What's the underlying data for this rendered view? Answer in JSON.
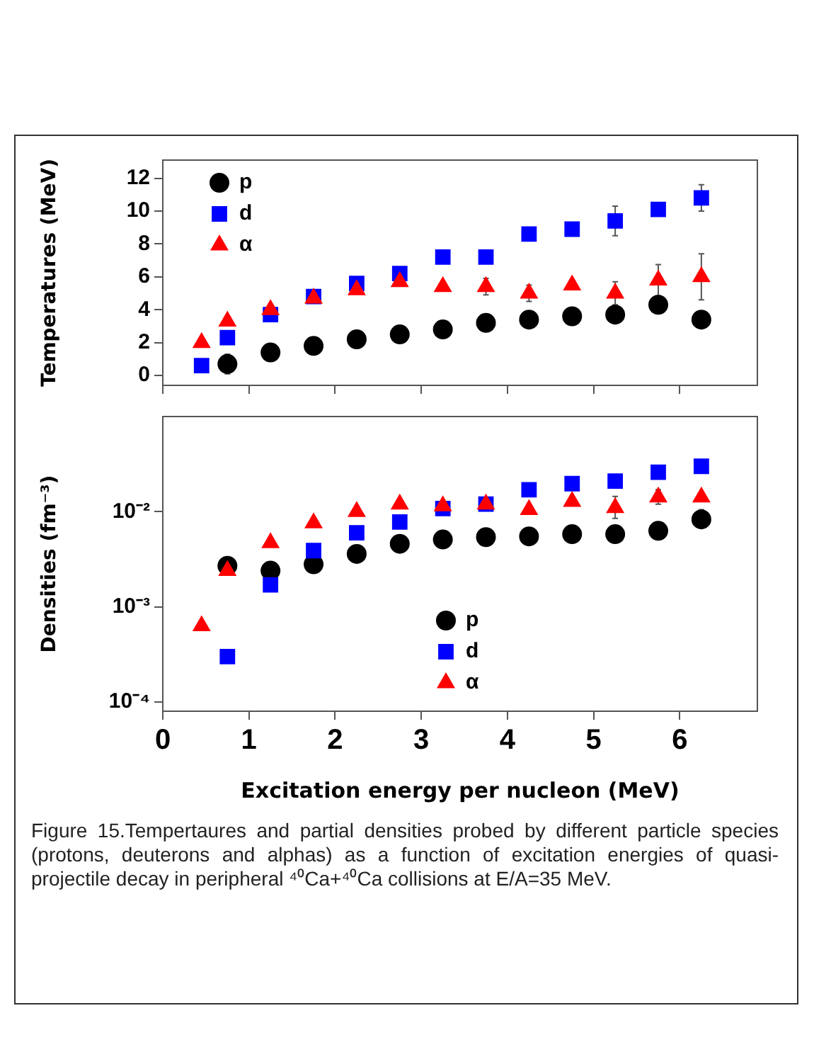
{
  "chart_data": [
    {
      "type": "scatter",
      "ylabel": "Temperatures (MeV)",
      "xlim": [
        0,
        6.9
      ],
      "xticks": [
        0,
        1,
        2,
        3,
        4,
        5,
        6
      ],
      "ylim": [
        -0.6,
        13.1
      ],
      "yticks": [
        0,
        2,
        4,
        6,
        8,
        10,
        12
      ],
      "tick_labels": "y",
      "legend": "top left",
      "grid": false,
      "series": [
        {
          "name": "p",
          "color": "#000000",
          "marker": "circle",
          "x": [
            0.75,
            1.25,
            1.75,
            2.25,
            2.75,
            3.25,
            3.75,
            4.25,
            4.75,
            5.25,
            5.75,
            6.25
          ],
          "values": [
            0.7,
            1.4,
            1.8,
            2.2,
            2.5,
            2.8,
            3.2,
            3.4,
            3.6,
            3.7,
            4.3,
            3.4
          ],
          "errors": [
            0.6,
            null,
            null,
            null,
            null,
            null,
            null,
            null,
            null,
            null,
            0.4,
            null
          ]
        },
        {
          "name": "d",
          "color": "#0000ff",
          "marker": "square",
          "x": [
            0.45,
            0.75,
            1.25,
            1.75,
            2.25,
            2.75,
            3.25,
            3.75,
            4.25,
            4.75,
            5.25,
            5.75,
            6.25
          ],
          "values": [
            0.6,
            2.3,
            3.7,
            4.8,
            5.6,
            6.2,
            7.2,
            7.2,
            8.6,
            8.9,
            9.4,
            10.1,
            10.8
          ],
          "errors": [
            null,
            null,
            null,
            null,
            null,
            null,
            null,
            null,
            null,
            null,
            0.9,
            null,
            0.8
          ]
        },
        {
          "name": "α",
          "color": "#ff0000",
          "marker": "triangle",
          "x": [
            0.45,
            0.75,
            1.25,
            1.75,
            2.25,
            2.75,
            3.25,
            3.75,
            4.25,
            4.75,
            5.25,
            5.75,
            6.25
          ],
          "values": [
            2.0,
            3.3,
            4.0,
            4.7,
            5.2,
            5.7,
            5.4,
            5.4,
            5.0,
            5.5,
            5.0,
            5.8,
            6.0
          ],
          "errors": [
            null,
            null,
            null,
            null,
            null,
            null,
            null,
            0.5,
            0.5,
            null,
            0.7,
            0.95,
            1.4
          ]
        }
      ]
    },
    {
      "type": "scatter",
      "xlabel": "Excitation energy per nucleon (MeV)",
      "ylabel": "Densities (fm⁻³)",
      "log": "y",
      "xlim": [
        0,
        6.9
      ],
      "xticks": [
        0,
        1,
        2,
        3,
        4,
        5,
        6
      ],
      "ylim": [
        8e-05,
        0.1
      ],
      "yticks": [
        {
          "value": 0.0001,
          "label": "10⁻⁴"
        },
        {
          "value": 0.001,
          "label": "10⁻³"
        },
        {
          "value": 0.01,
          "label": "10⁻²"
        }
      ],
      "legend": "bottom",
      "grid": false,
      "annotations": [
        "Figure 15.Tempertaures and partial densities probed by different particle species (protons, deuterons and alphas) as a function of excitation energies of quasi-projectile decay in peripheral ⁴⁰Ca+⁴⁰Ca collisions at E/A=35 MeV."
      ],
      "series": [
        {
          "name": "p",
          "color": "#000000",
          "marker": "circle",
          "x": [
            0.75,
            1.25,
            1.75,
            2.25,
            2.75,
            3.25,
            3.75,
            4.25,
            4.75,
            5.25,
            5.75,
            6.25
          ],
          "values": [
            0.0027,
            0.0024,
            0.0028,
            0.0036,
            0.0046,
            0.0051,
            0.0054,
            0.0055,
            0.0058,
            0.0058,
            0.0063,
            0.0083
          ],
          "errors": [
            null,
            null,
            null,
            null,
            null,
            null,
            null,
            null,
            null,
            null,
            null,
            [
              0.0068,
              0.0105
            ]
          ]
        },
        {
          "name": "d",
          "color": "#0000ff",
          "marker": "square",
          "x": [
            0.75,
            1.25,
            1.75,
            2.25,
            2.75,
            3.25,
            3.75,
            4.25,
            4.75,
            5.25,
            5.75,
            6.25
          ],
          "values": [
            0.0003,
            0.0017,
            0.0039,
            0.006,
            0.0078,
            0.0108,
            0.012,
            0.017,
            0.0197,
            0.021,
            0.026,
            0.03
          ]
        },
        {
          "name": "α",
          "color": "#ff0000",
          "marker": "triangle",
          "x": [
            0.45,
            0.75,
            1.25,
            1.75,
            2.25,
            2.75,
            3.25,
            3.75,
            4.25,
            4.75,
            5.25,
            5.75,
            6.25
          ],
          "values": [
            0.00063,
            0.0024,
            0.0047,
            0.0076,
            0.01,
            0.012,
            0.0115,
            0.012,
            0.0105,
            0.0128,
            0.011,
            0.0142,
            0.0142
          ],
          "errors": [
            null,
            null,
            null,
            null,
            null,
            null,
            null,
            null,
            null,
            null,
            [
              0.0085,
              0.0145
            ],
            [
              0.012,
              0.017
            ],
            null
          ]
        }
      ]
    }
  ]
}
